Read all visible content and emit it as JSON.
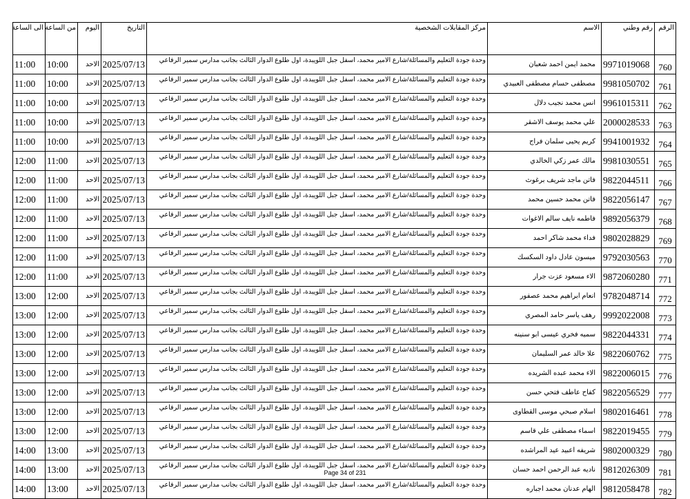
{
  "headers": {
    "num": "الرقم",
    "national_id": "رقم وطني",
    "name": "الاسم",
    "center": "مركز المقابلات الشخصية",
    "date": "التاريخ",
    "day": "اليوم",
    "from": "من الساعة",
    "to": "الى الساعة"
  },
  "center_text": "وحدة جودة التعليم والمسائلة/شارع الامير محمد، اسفل جبل اللويبدة، اول طلوع الدوار الثالث بجانب مدارس سمير الرفاعي",
  "rows": [
    {
      "num": "760",
      "nid": "9971019068",
      "name": "محمد ايمن احمد شعبان",
      "date": "2025/07/13",
      "day": "الاحد",
      "from": "10:00",
      "to": "11:00"
    },
    {
      "num": "761",
      "nid": "9981050702",
      "name": "مصطفى حسام مصطفى العبيدي",
      "date": "2025/07/13",
      "day": "الاحد",
      "from": "10:00",
      "to": "11:00"
    },
    {
      "num": "762",
      "nid": "9961015311",
      "name": "انس محمد نجيب دلال",
      "date": "2025/07/13",
      "day": "الاحد",
      "from": "10:00",
      "to": "11:00"
    },
    {
      "num": "763",
      "nid": "2000028533",
      "name": "علي محمد يوسف الاشقر",
      "date": "2025/07/13",
      "day": "الاحد",
      "from": "10:00",
      "to": "11:00"
    },
    {
      "num": "764",
      "nid": "9941001932",
      "name": "كريم يحيى سلمان فراج",
      "date": "2025/07/13",
      "day": "الاحد",
      "from": "10:00",
      "to": "11:00"
    },
    {
      "num": "765",
      "nid": "9981030551",
      "name": "مالك عمر زكي الخالدي",
      "date": "2025/07/13",
      "day": "الاحد",
      "from": "11:00",
      "to": "12:00"
    },
    {
      "num": "766",
      "nid": "9822044511",
      "name": "فاتن ماجد شريف برغوث",
      "date": "2025/07/13",
      "day": "الاحد",
      "from": "11:00",
      "to": "12:00"
    },
    {
      "num": "767",
      "nid": "9822056147",
      "name": "فاتن محمد حسين محمد",
      "date": "2025/07/13",
      "day": "الاحد",
      "from": "11:00",
      "to": "12:00"
    },
    {
      "num": "768",
      "nid": "9892056379",
      "name": "فاطمه نايف سالم الاغوات",
      "date": "2025/07/13",
      "day": "الاحد",
      "from": "11:00",
      "to": "12:00"
    },
    {
      "num": "769",
      "nid": "9802028829",
      "name": "فداء محمد شاكر احمد",
      "date": "2025/07/13",
      "day": "الاحد",
      "from": "11:00",
      "to": "12:00"
    },
    {
      "num": "770",
      "nid": "9792030563",
      "name": "ميسون عادل داود السكسك",
      "date": "2025/07/13",
      "day": "الاحد",
      "from": "11:00",
      "to": "12:00"
    },
    {
      "num": "771",
      "nid": "9872060280",
      "name": "الاء مسعود عزت جرار",
      "date": "2025/07/13",
      "day": "الاحد",
      "from": "11:00",
      "to": "12:00"
    },
    {
      "num": "772",
      "nid": "9782048714",
      "name": "انعام ابراهيم محمد عصفور",
      "date": "2025/07/13",
      "day": "الاحد",
      "from": "12:00",
      "to": "13:00"
    },
    {
      "num": "773",
      "nid": "9992022008",
      "name": "رهف ياسر حامد المصري",
      "date": "2025/07/13",
      "day": "الاحد",
      "from": "12:00",
      "to": "13:00"
    },
    {
      "num": "774",
      "nid": "9822044331",
      "name": "سميه فخري عيسى ابو سنينه",
      "date": "2025/07/13",
      "day": "الاحد",
      "from": "12:00",
      "to": "13:00"
    },
    {
      "num": "775",
      "nid": "9822060762",
      "name": "علا خالد عمر السليمان",
      "date": "2025/07/13",
      "day": "الاحد",
      "from": "12:00",
      "to": "13:00"
    },
    {
      "num": "776",
      "nid": "9822006015",
      "name": "الاء محمد عبده الشريده",
      "date": "2025/07/13",
      "day": "الاحد",
      "from": "12:00",
      "to": "13:00"
    },
    {
      "num": "777",
      "nid": "9822056529",
      "name": "كفاح عاطف فتحي حسن",
      "date": "2025/07/13",
      "day": "الاحد",
      "from": "12:00",
      "to": "13:00"
    },
    {
      "num": "778",
      "nid": "9802016461",
      "name": "اسلام صبحي موسى القطاوى",
      "date": "2025/07/13",
      "day": "الاحد",
      "from": "12:00",
      "to": "13:00"
    },
    {
      "num": "779",
      "nid": "9822019455",
      "name": "اسماء مصطفى علي قاسم",
      "date": "2025/07/13",
      "day": "الاحد",
      "from": "12:00",
      "to": "13:00"
    },
    {
      "num": "780",
      "nid": "9802000329",
      "name": "شريفه اعبيد عيد المراشده",
      "date": "2025/07/13",
      "day": "الاحد",
      "from": "13:00",
      "to": "14:00"
    },
    {
      "num": "781",
      "nid": "9812026309",
      "name": "ناديه عبد  الرحمن احمد حسان",
      "date": "2025/07/13",
      "day": "الاحد",
      "from": "13:00",
      "to": "14:00"
    },
    {
      "num": "782",
      "nid": "9812058478",
      "name": "الهام عدنان محمد اجباره",
      "date": "2025/07/13",
      "day": "الاحد",
      "from": "13:00",
      "to": "14:00"
    }
  ],
  "footer": "Page 34 of 231"
}
